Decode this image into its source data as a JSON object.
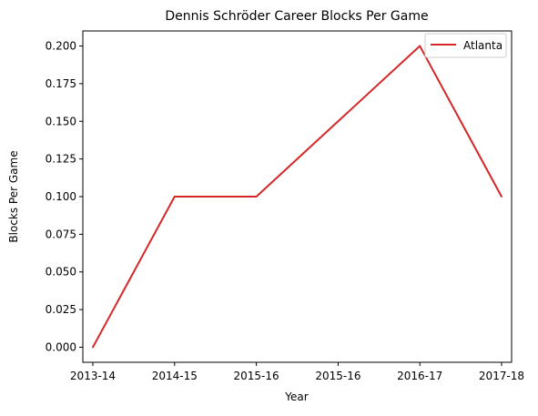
{
  "chart_data": {
    "type": "line",
    "title": "Dennis Schröder Career Blocks Per Game",
    "xlabel": "Year",
    "ylabel": "Blocks Per Game",
    "categories": [
      "2013-14",
      "2014-15",
      "2015-16",
      "2015-16",
      "2016-17",
      "2017-18"
    ],
    "series": [
      {
        "name": "Atlanta",
        "color": "#d62728",
        "values": [
          0.0,
          0.1,
          0.1,
          0.15,
          0.2,
          0.1
        ]
      }
    ],
    "ylim": [
      -0.01,
      0.21
    ],
    "yticks": [
      "0.000",
      "0.025",
      "0.050",
      "0.075",
      "0.100",
      "0.125",
      "0.150",
      "0.175",
      "0.200"
    ],
    "ytick_values": [
      0.0,
      0.025,
      0.05,
      0.075,
      0.1,
      0.125,
      0.15,
      0.175,
      0.2
    ],
    "grid": false,
    "legend_position": "top-right"
  }
}
